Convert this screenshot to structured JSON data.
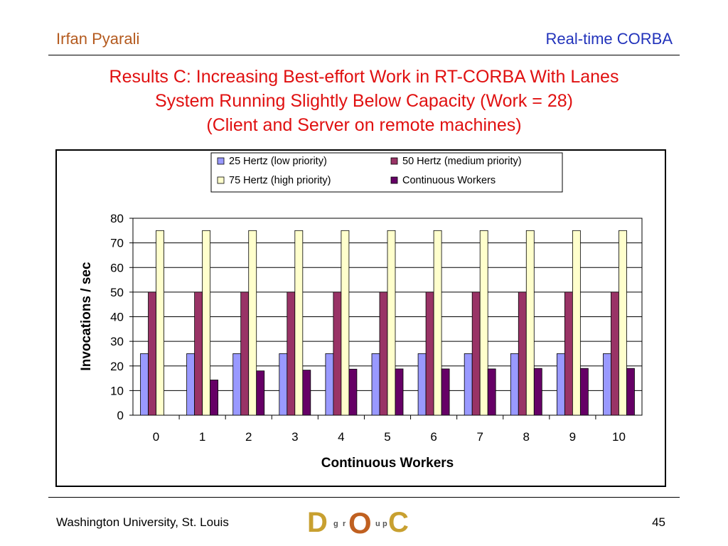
{
  "header": {
    "author": "Irfan Pyarali",
    "topic": "Real-time CORBA"
  },
  "title": {
    "line1": "Results C: Increasing Best-effort Work in RT-CORBA With Lanes",
    "line2": "System Running Slightly Below Capacity (Work = 28)",
    "line3": "(Client and Server on remote machines)"
  },
  "footer": {
    "institution": "Washington University, St. Louis",
    "page_number": "45"
  },
  "logo": {
    "letters": [
      "D",
      "g",
      "r",
      "O",
      "u",
      "p",
      "C"
    ]
  },
  "chart_data": {
    "type": "bar",
    "categories": [
      "0",
      "1",
      "2",
      "3",
      "4",
      "5",
      "6",
      "7",
      "8",
      "9",
      "10"
    ],
    "xlabel": "Continuous Workers",
    "ylabel": "Invocations / sec",
    "ylim": [
      0,
      80
    ],
    "yticks": [
      0,
      10,
      20,
      30,
      40,
      50,
      60,
      70,
      80
    ],
    "grid": true,
    "legend_position": "top",
    "series": [
      {
        "name": "25 Hertz (low priority)",
        "color": "#9999ff",
        "values": [
          25,
          25,
          25,
          25,
          25,
          25,
          25,
          25,
          25,
          25,
          25
        ]
      },
      {
        "name": "50 Hertz (medium priority)",
        "color": "#993366",
        "values": [
          50,
          50,
          50,
          50,
          50,
          50,
          50,
          50,
          50,
          50,
          50
        ]
      },
      {
        "name": "75 Hertz (high priority)",
        "color": "#ffffcc",
        "values": [
          75,
          75,
          75,
          75,
          75,
          75,
          75,
          75,
          75,
          75,
          75
        ]
      },
      {
        "name": "Continuous Workers",
        "color": "#660066",
        "values": [
          0,
          14.3,
          18,
          18.3,
          18.7,
          18.8,
          18.8,
          18.8,
          19,
          19,
          19
        ]
      }
    ]
  }
}
